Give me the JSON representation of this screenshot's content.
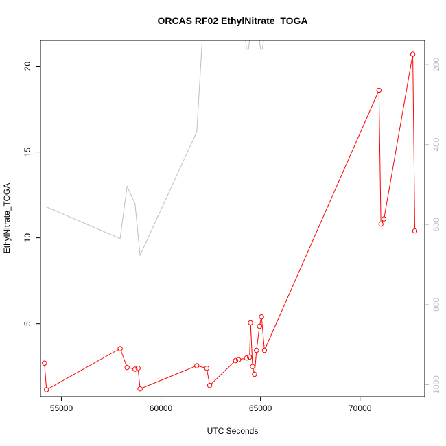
{
  "chart_data": {
    "type": "line",
    "title": "ORCAS RF02 EthylNitrate_TOGA",
    "xlabel": "UTC Seconds",
    "ylabel": "EthylNitrate_TOGA",
    "xlim": [
      53950,
      73250
    ],
    "ylim": [
      0.75,
      21.5
    ],
    "x_ticks": [
      55000,
      60000,
      65000,
      70000
    ],
    "y_ticks": [
      5,
      10,
      15,
      20
    ],
    "y2_ticks": [
      200,
      400,
      600,
      800,
      1000
    ],
    "y2lim": [
      1030,
      140
    ],
    "grid": false,
    "series": [
      {
        "role": "primary",
        "color": "#ff0000",
        "marker": "open-circle",
        "points": [
          [
            54150,
            2.7
          ],
          [
            54250,
            1.15
          ],
          [
            57950,
            3.55
          ],
          [
            58300,
            2.45
          ],
          [
            58700,
            2.35
          ],
          [
            58850,
            2.4
          ],
          [
            58950,
            1.2
          ],
          [
            61800,
            2.55
          ],
          [
            62300,
            2.4
          ],
          [
            62450,
            1.4
          ],
          [
            63750,
            2.85
          ],
          [
            63900,
            2.9
          ],
          [
            64300,
            3.0
          ],
          [
            64450,
            3.05
          ],
          [
            64500,
            5.05
          ],
          [
            64600,
            2.5
          ],
          [
            64700,
            2.05
          ],
          [
            64800,
            3.45
          ],
          [
            64950,
            4.85
          ],
          [
            65050,
            5.4
          ],
          [
            65200,
            3.45
          ],
          [
            70950,
            18.6
          ],
          [
            71050,
            10.8
          ],
          [
            71200,
            11.1
          ],
          [
            72650,
            20.7
          ],
          [
            72750,
            10.4
          ]
        ]
      },
      {
        "role": "secondary",
        "color": "#bebebe",
        "marker": "none",
        "axis": "right",
        "points": [
          [
            54150,
            555
          ],
          [
            54300,
            557
          ],
          [
            57950,
            635
          ],
          [
            58300,
            505
          ],
          [
            58700,
            548
          ],
          [
            58950,
            677
          ],
          [
            61800,
            368
          ],
          [
            62100,
            115
          ],
          [
            64200,
            115
          ],
          [
            64300,
            162
          ],
          [
            64400,
            162
          ],
          [
            64500,
            115
          ],
          [
            64900,
            115
          ],
          [
            65000,
            162
          ],
          [
            65100,
            162
          ],
          [
            65200,
            115
          ]
        ]
      }
    ]
  }
}
